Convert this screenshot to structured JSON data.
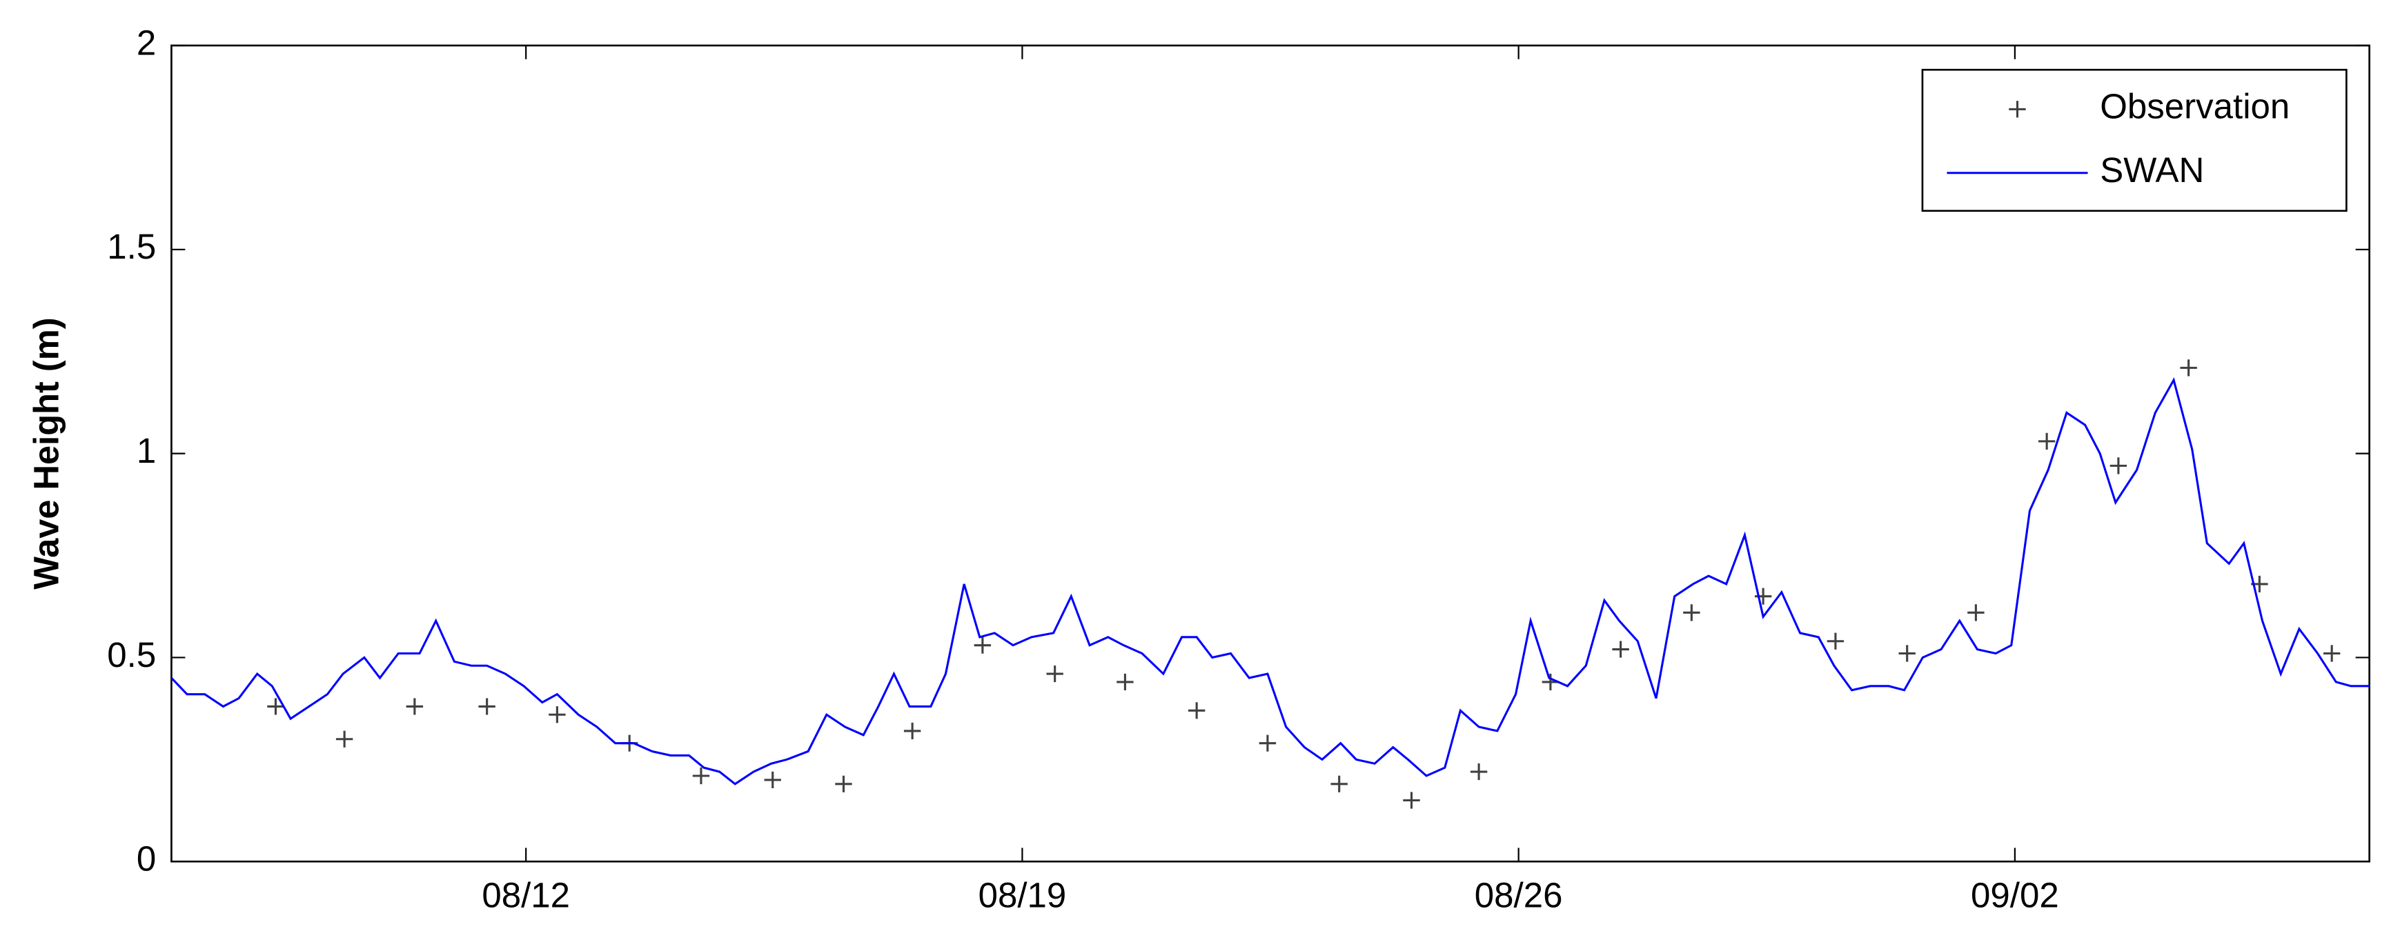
{
  "chart_data": {
    "type": "line",
    "ylabel": "Wave Height (m)",
    "xlim": [
      7,
      38
    ],
    "xticks": [
      {
        "value": 12,
        "label": "08/12"
      },
      {
        "value": 19,
        "label": "08/19"
      },
      {
        "value": 26,
        "label": "08/26"
      },
      {
        "value": 33,
        "label": "09/02"
      }
    ],
    "ylim": [
      0,
      2
    ],
    "yticks": [
      0,
      0.5,
      1,
      1.5,
      2
    ],
    "grid": false,
    "legend": "northeast",
    "series": [
      {
        "name": "Observation",
        "color": "#404040",
        "marker": "+",
        "x": [
          8.47,
          9.44,
          10.43,
          11.45,
          12.44,
          13.46,
          14.47,
          15.48,
          16.48,
          17.45,
          18.44,
          19.46,
          20.45,
          21.46,
          22.46,
          23.47,
          24.49,
          25.44,
          26.45,
          27.44,
          28.44,
          29.45,
          30.47,
          31.48,
          32.45,
          33.45,
          34.46,
          35.45,
          36.45,
          37.47
        ],
        "values": [
          0.38,
          0.3,
          0.38,
          0.38,
          0.36,
          0.29,
          0.21,
          0.2,
          0.19,
          0.32,
          0.53,
          0.46,
          0.44,
          0.37,
          0.29,
          0.19,
          0.15,
          0.22,
          0.44,
          0.52,
          0.61,
          0.65,
          0.54,
          0.51,
          0.61,
          1.03,
          0.97,
          1.21,
          0.68,
          0.51
        ]
      },
      {
        "name": "SWAN",
        "color": "#0000ff",
        "x": [
          7.0,
          7.22,
          7.47,
          7.73,
          7.95,
          8.21,
          8.42,
          8.68,
          8.94,
          9.2,
          9.42,
          9.72,
          9.94,
          10.2,
          10.5,
          10.73,
          10.99,
          11.23,
          11.45,
          11.71,
          11.97,
          12.23,
          12.44,
          12.74,
          13.0,
          13.26,
          13.52,
          13.78,
          14.04,
          14.3,
          14.51,
          14.73,
          14.95,
          15.21,
          15.46,
          15.68,
          15.98,
          16.24,
          16.5,
          16.76,
          16.97,
          17.19,
          17.41,
          17.71,
          17.92,
          18.18,
          18.4,
          18.61,
          18.87,
          19.13,
          19.44,
          19.69,
          19.95,
          20.21,
          20.43,
          20.69,
          20.99,
          21.25,
          21.46,
          21.68,
          21.94,
          22.2,
          22.46,
          22.72,
          22.98,
          23.23,
          23.49,
          23.71,
          23.97,
          24.23,
          24.44,
          24.7,
          24.96,
          25.18,
          25.44,
          25.7,
          25.96,
          26.17,
          26.43,
          26.69,
          26.95,
          27.21,
          27.42,
          27.68,
          27.94,
          28.2,
          28.46,
          28.68,
          28.93,
          29.19,
          29.45,
          29.71,
          29.97,
          30.23,
          30.45,
          30.7,
          30.96,
          31.22,
          31.44,
          31.7,
          31.96,
          32.22,
          32.47,
          32.73,
          32.95,
          33.21,
          33.47,
          33.73,
          33.99,
          34.2,
          34.42,
          34.72,
          34.98,
          35.24,
          35.5,
          35.71,
          36.02,
          36.23,
          36.49,
          36.75,
          37.01,
          37.27,
          37.53,
          37.74,
          38.0
        ],
        "values": [
          0.45,
          0.41,
          0.41,
          0.38,
          0.4,
          0.46,
          0.43,
          0.35,
          0.38,
          0.41,
          0.46,
          0.5,
          0.45,
          0.51,
          0.51,
          0.59,
          0.49,
          0.48,
          0.48,
          0.46,
          0.43,
          0.39,
          0.41,
          0.36,
          0.33,
          0.29,
          0.29,
          0.27,
          0.26,
          0.26,
          0.23,
          0.22,
          0.19,
          0.22,
          0.24,
          0.25,
          0.27,
          0.36,
          0.33,
          0.31,
          0.38,
          0.46,
          0.38,
          0.38,
          0.46,
          0.68,
          0.55,
          0.56,
          0.53,
          0.55,
          0.56,
          0.65,
          0.53,
          0.55,
          0.53,
          0.51,
          0.46,
          0.55,
          0.55,
          0.5,
          0.51,
          0.45,
          0.46,
          0.33,
          0.28,
          0.25,
          0.29,
          0.25,
          0.24,
          0.28,
          0.25,
          0.21,
          0.23,
          0.37,
          0.33,
          0.32,
          0.41,
          0.59,
          0.45,
          0.43,
          0.48,
          0.64,
          0.59,
          0.54,
          0.4,
          0.65,
          0.68,
          0.7,
          0.68,
          0.8,
          0.6,
          0.66,
          0.56,
          0.55,
          0.48,
          0.42,
          0.43,
          0.43,
          0.42,
          0.5,
          0.52,
          0.59,
          0.52,
          0.51,
          0.53,
          0.86,
          0.96,
          1.1,
          1.07,
          1.0,
          0.88,
          0.96,
          1.1,
          1.18,
          1.01,
          0.78,
          0.73,
          0.78,
          0.59,
          0.46,
          0.57,
          0.51,
          0.44,
          0.43,
          0.43
        ]
      }
    ]
  }
}
